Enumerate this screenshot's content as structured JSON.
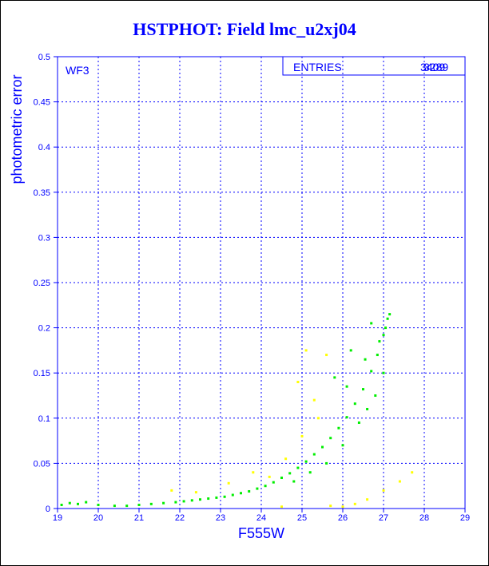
{
  "chart_data": {
    "type": "scatter",
    "title": "HSTPHOT: Field lmc_u2xj04",
    "panel_label": "WF3",
    "stats_box": {
      "label": "ENTRIES",
      "value_a": "3409",
      "value_b": "3289"
    },
    "xlabel": "F555W",
    "ylabel": "photometric error",
    "xlim": [
      19,
      29
    ],
    "ylim": [
      0,
      0.5
    ],
    "xticks": [
      "19",
      "20",
      "21",
      "22",
      "23",
      "24",
      "25",
      "26",
      "27",
      "28",
      "29"
    ],
    "yticks": [
      "0",
      "0.05",
      "0.1",
      "0.15",
      "0.2",
      "0.25",
      "0.3",
      "0.35",
      "0.4",
      "0.45",
      "0.5"
    ],
    "grid": true,
    "series": [
      {
        "color": "#00ee00",
        "points": [
          [
            19.1,
            0.004
          ],
          [
            19.3,
            0.006
          ],
          [
            19.5,
            0.005
          ],
          [
            19.7,
            0.007
          ],
          [
            20.0,
            0.004
          ],
          [
            20.4,
            0.003
          ],
          [
            20.7,
            0.003
          ],
          [
            21.0,
            0.004
          ],
          [
            21.3,
            0.005
          ],
          [
            21.6,
            0.006
          ],
          [
            21.9,
            0.007
          ],
          [
            22.1,
            0.008
          ],
          [
            22.3,
            0.009
          ],
          [
            22.5,
            0.01
          ],
          [
            22.7,
            0.011
          ],
          [
            22.9,
            0.012
          ],
          [
            23.1,
            0.013
          ],
          [
            23.3,
            0.015
          ],
          [
            23.5,
            0.017
          ],
          [
            23.7,
            0.019
          ],
          [
            23.9,
            0.022
          ],
          [
            24.1,
            0.025
          ],
          [
            24.3,
            0.029
          ],
          [
            24.5,
            0.034
          ],
          [
            24.7,
            0.039
          ],
          [
            24.9,
            0.045
          ],
          [
            25.1,
            0.052
          ],
          [
            25.3,
            0.06
          ],
          [
            25.5,
            0.068
          ],
          [
            25.7,
            0.078
          ],
          [
            25.9,
            0.089
          ],
          [
            26.1,
            0.101
          ],
          [
            26.3,
            0.116
          ],
          [
            26.5,
            0.132
          ],
          [
            26.7,
            0.152
          ],
          [
            26.85,
            0.17
          ],
          [
            27.0,
            0.192
          ],
          [
            27.1,
            0.21
          ],
          [
            27.15,
            0.215
          ],
          [
            24.8,
            0.03
          ],
          [
            25.2,
            0.04
          ],
          [
            25.6,
            0.05
          ],
          [
            26.0,
            0.07
          ],
          [
            26.4,
            0.095
          ],
          [
            26.6,
            0.11
          ],
          [
            26.8,
            0.125
          ],
          [
            27.0,
            0.15
          ],
          [
            26.2,
            0.175
          ],
          [
            26.7,
            0.205
          ],
          [
            25.8,
            0.145
          ],
          [
            26.1,
            0.135
          ],
          [
            26.9,
            0.185
          ],
          [
            27.05,
            0.2
          ],
          [
            26.55,
            0.165
          ]
        ]
      },
      {
        "color": "#ffff00",
        "points": [
          [
            21.8,
            0.02
          ],
          [
            22.4,
            0.018
          ],
          [
            23.2,
            0.028
          ],
          [
            23.8,
            0.04
          ],
          [
            24.2,
            0.035
          ],
          [
            24.6,
            0.055
          ],
          [
            25.0,
            0.08
          ],
          [
            25.3,
            0.12
          ],
          [
            25.6,
            0.17
          ],
          [
            25.1,
            0.175
          ],
          [
            24.9,
            0.14
          ],
          [
            26.0,
            0.002
          ],
          [
            26.3,
            0.005
          ],
          [
            26.6,
            0.01
          ],
          [
            27.0,
            0.02
          ],
          [
            27.4,
            0.03
          ],
          [
            27.7,
            0.04
          ],
          [
            25.7,
            0.003
          ],
          [
            24.5,
            0.002
          ],
          [
            25.4,
            0.1
          ]
        ]
      }
    ]
  }
}
